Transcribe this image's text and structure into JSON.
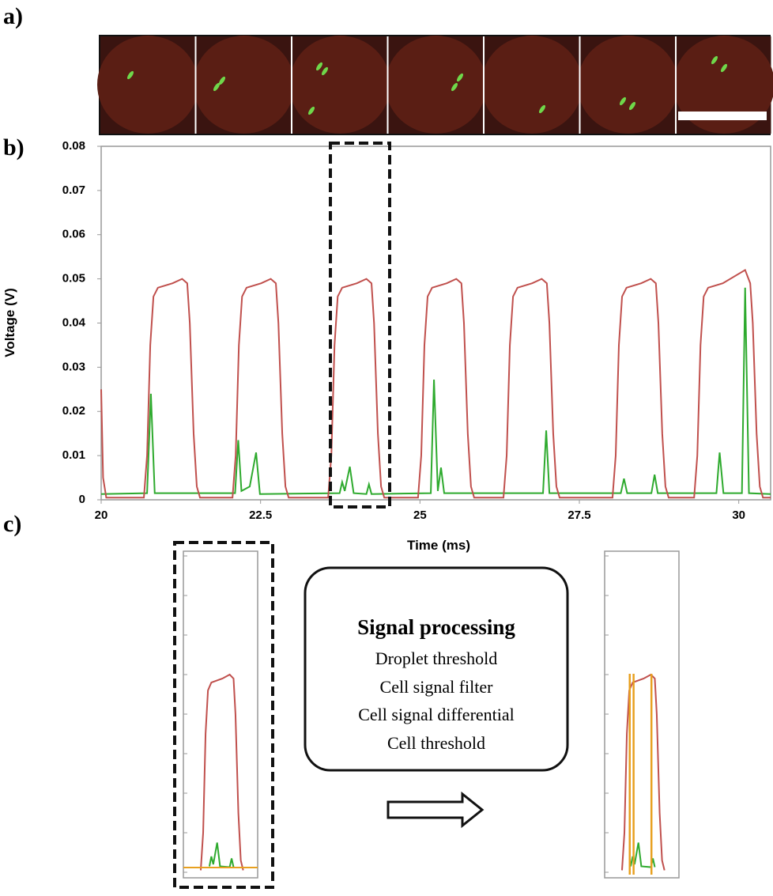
{
  "panel_labels": [
    "a)",
    "b)",
    "c)"
  ],
  "chart_data": {
    "type": "line",
    "x_label": "Time (ms)",
    "y_label": "Voltage (V)",
    "xlim": [
      20,
      30.5
    ],
    "ylim": [
      0,
      0.08
    ],
    "xticks": [
      20,
      22.5,
      25,
      27.5,
      30
    ],
    "yticks": [
      0,
      0.01,
      0.02,
      0.03,
      0.04,
      0.05,
      0.06,
      0.07,
      0.08
    ],
    "series": [
      {
        "color": "#c0504d",
        "x": [
          20,
          20.03,
          20.08,
          20.67,
          20.72,
          20.77,
          20.82,
          20.89,
          21.12,
          21.27,
          21.35,
          21.39,
          21.45,
          21.5,
          21.55,
          22.06,
          22.11,
          22.16,
          22.21,
          22.28,
          22.51,
          22.66,
          22.74,
          22.78,
          22.84,
          22.89,
          22.94,
          23.56,
          23.61,
          23.66,
          23.71,
          23.78,
          24.01,
          24.16,
          24.24,
          24.28,
          24.34,
          24.39,
          24.44,
          24.97,
          25.02,
          25.07,
          25.12,
          25.19,
          25.42,
          25.57,
          25.65,
          25.69,
          25.75,
          25.8,
          25.85,
          26.31,
          26.36,
          26.41,
          26.46,
          26.53,
          26.76,
          26.91,
          26.99,
          27.03,
          27.09,
          27.14,
          27.19,
          28.02,
          28.07,
          28.12,
          28.17,
          28.24,
          28.47,
          28.62,
          28.7,
          28.74,
          28.8,
          28.85,
          28.9,
          29.3,
          29.35,
          29.4,
          29.45,
          29.52,
          29.75,
          30.1,
          30.18,
          30.22,
          30.28,
          30.33,
          30.38,
          30.5
        ],
        "values": [
          0.025,
          0.005,
          0.0005,
          0.0005,
          0.01,
          0.035,
          0.046,
          0.048,
          0.049,
          0.05,
          0.049,
          0.04,
          0.015,
          0.003,
          0.0005,
          0.0005,
          0.01,
          0.035,
          0.046,
          0.048,
          0.049,
          0.05,
          0.049,
          0.04,
          0.015,
          0.003,
          0.0005,
          0.0005,
          0.01,
          0.035,
          0.046,
          0.048,
          0.049,
          0.05,
          0.049,
          0.04,
          0.015,
          0.003,
          0.0005,
          0.0005,
          0.01,
          0.035,
          0.046,
          0.048,
          0.049,
          0.05,
          0.049,
          0.04,
          0.015,
          0.003,
          0.0005,
          0.0005,
          0.01,
          0.035,
          0.046,
          0.048,
          0.049,
          0.05,
          0.049,
          0.04,
          0.015,
          0.003,
          0.0005,
          0.0005,
          0.01,
          0.035,
          0.046,
          0.048,
          0.049,
          0.05,
          0.049,
          0.04,
          0.015,
          0.003,
          0.0005,
          0.0005,
          0.01,
          0.035,
          0.046,
          0.048,
          0.049,
          0.052,
          0.049,
          0.04,
          0.015,
          0.003,
          0.0005,
          0.0005
        ]
      },
      {
        "color": "#2eaa2e",
        "x": [
          20,
          20.72,
          20.78,
          20.84,
          22.1,
          22.15,
          22.2,
          22.33,
          22.43,
          22.49,
          23.74,
          23.78,
          23.82,
          23.9,
          23.96,
          24.16,
          24.2,
          24.24,
          25.17,
          25.22,
          25.28,
          25.33,
          25.38,
          26.93,
          26.98,
          27.03,
          28.15,
          28.2,
          28.25,
          28.63,
          28.68,
          28.73,
          29.65,
          29.7,
          29.76,
          30.05,
          30.1,
          30.16,
          30.5
        ],
        "values": [
          0.0013,
          0.0015,
          0.024,
          0.0015,
          0.0015,
          0.0135,
          0.002,
          0.003,
          0.0107,
          0.0013,
          0.0015,
          0.004,
          0.002,
          0.0075,
          0.0015,
          0.0013,
          0.0035,
          0.0013,
          0.0015,
          0.0272,
          0.002,
          0.0073,
          0.0015,
          0.0015,
          0.0157,
          0.0015,
          0.0015,
          0.0048,
          0.0015,
          0.0015,
          0.0057,
          0.0015,
          0.0015,
          0.0107,
          0.0015,
          0.0015,
          0.048,
          0.0015,
          0.0013
        ]
      }
    ]
  },
  "processing": {
    "title": "Signal processing",
    "steps": [
      "Droplet threshold",
      "Cell signal filter",
      "Cell signal differential",
      "Cell threshold"
    ]
  }
}
